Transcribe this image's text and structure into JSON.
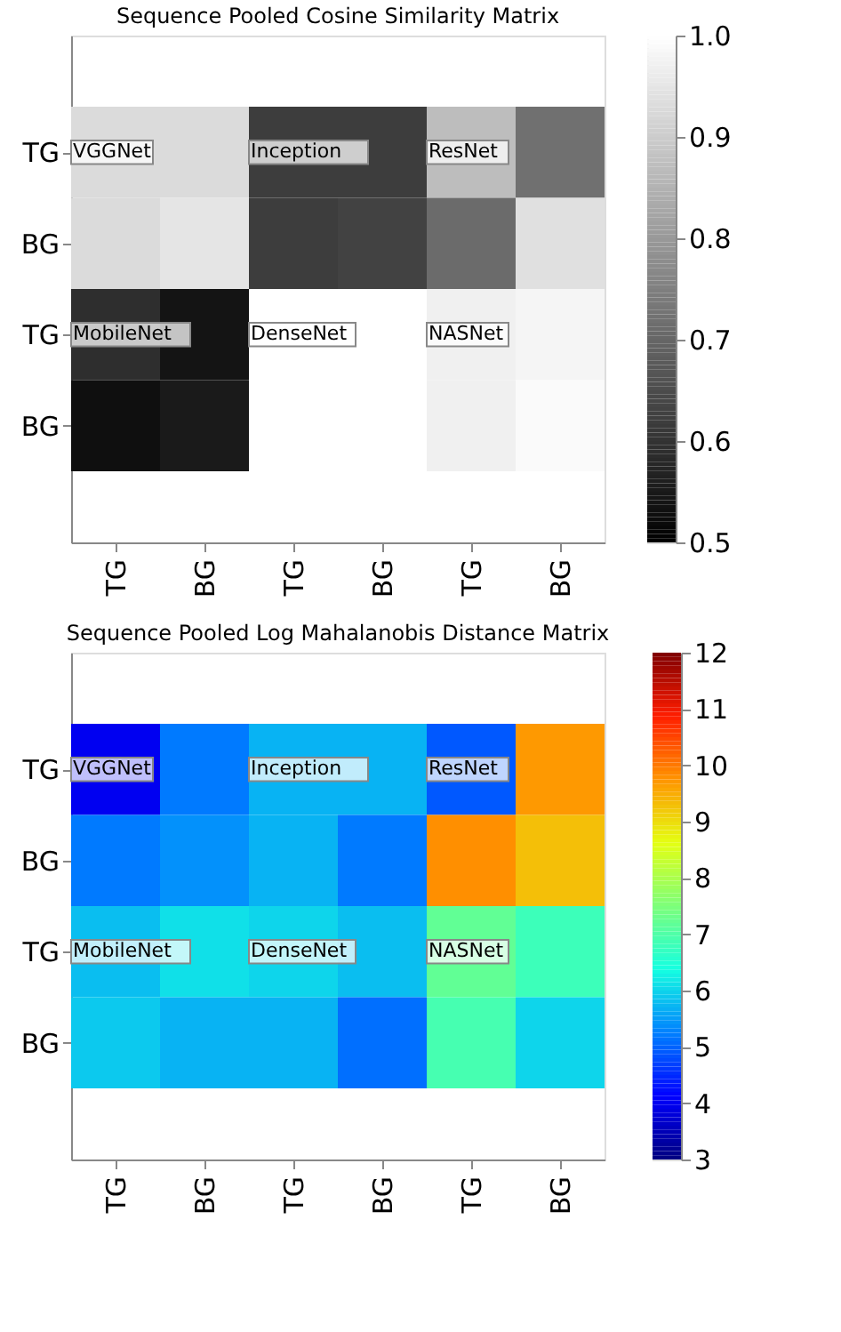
{
  "chart_data": [
    {
      "type": "heatmap",
      "title": "Sequence Pooled Cosine Similarity Matrix",
      "categories": [
        "TG",
        "BG",
        "TG",
        "BG",
        "TG",
        "BG"
      ],
      "y_categories": [
        "TG",
        "BG",
        "TG",
        "BG"
      ],
      "cells": [
        [
          0.93,
          0.93,
          0.62,
          0.62,
          0.87,
          0.72
        ],
        [
          0.93,
          0.95,
          0.62,
          0.63,
          0.71,
          0.94
        ],
        [
          0.59,
          0.54,
          1.0,
          1.0,
          0.97,
          0.98
        ],
        [
          0.53,
          0.55,
          1.0,
          1.0,
          0.97,
          0.99
        ]
      ],
      "clim": [
        0.5,
        1.0
      ],
      "cticks": [
        0.5,
        0.6,
        0.7,
        0.8,
        0.9,
        {
          "value": 1.0,
          "label": "1.0"
        }
      ],
      "annotations": [
        "VGGNet",
        "Inception",
        "ResNet",
        "MobileNet",
        "DenseNet",
        "NASNet"
      ]
    },
    {
      "type": "heatmap",
      "title": "Sequence Pooled Log Mahalanobis Distance Matrix",
      "categories": [
        "TG",
        "BG",
        "TG",
        "BG",
        "TG",
        "BG"
      ],
      "y_categories": [
        "TG",
        "BG",
        "TG",
        "BG"
      ],
      "cells": [
        [
          4.0,
          5.2,
          5.7,
          5.7,
          4.9,
          9.7
        ],
        [
          5.2,
          5.4,
          5.7,
          5.2,
          9.8,
          9.3
        ],
        [
          5.8,
          6.1,
          6.0,
          5.8,
          7.2,
          6.8
        ],
        [
          5.9,
          5.7,
          5.7,
          5.1,
          6.9,
          6.0
        ]
      ],
      "clim": [
        3,
        12
      ],
      "cticks": [
        3,
        4,
        5,
        6,
        7,
        8,
        9,
        10,
        11,
        12
      ],
      "annotations": [
        "VGGNet",
        "Inception",
        "ResNet",
        "MobileNet",
        "DenseNet",
        "NASNet"
      ]
    }
  ]
}
